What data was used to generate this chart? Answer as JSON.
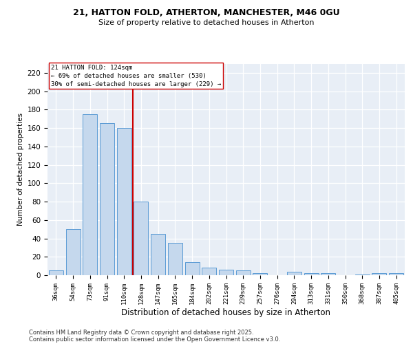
{
  "title1": "21, HATTON FOLD, ATHERTON, MANCHESTER, M46 0GU",
  "title2": "Size of property relative to detached houses in Atherton",
  "xlabel": "Distribution of detached houses by size in Atherton",
  "ylabel": "Number of detached properties",
  "categories": [
    "36sqm",
    "54sqm",
    "73sqm",
    "91sqm",
    "110sqm",
    "128sqm",
    "147sqm",
    "165sqm",
    "184sqm",
    "202sqm",
    "221sqm",
    "239sqm",
    "257sqm",
    "276sqm",
    "294sqm",
    "313sqm",
    "331sqm",
    "350sqm",
    "368sqm",
    "387sqm",
    "405sqm"
  ],
  "values": [
    5,
    50,
    175,
    165,
    160,
    80,
    45,
    35,
    14,
    8,
    6,
    5,
    2,
    0,
    4,
    2,
    2,
    0,
    1,
    2,
    2
  ],
  "bar_color": "#c5d8ed",
  "bar_edge_color": "#5b9bd5",
  "vline_index": 4,
  "vline_side": "right",
  "vline_color": "#cc0000",
  "annotation_line1": "21 HATTON FOLD: 124sqm",
  "annotation_line2": "← 69% of detached houses are smaller (530)",
  "annotation_line3": "30% of semi-detached houses are larger (229) →",
  "annotation_box_color": "white",
  "annotation_box_edge": "#cc0000",
  "ylim": [
    0,
    230
  ],
  "yticks": [
    0,
    20,
    40,
    60,
    80,
    100,
    120,
    140,
    160,
    180,
    200,
    220
  ],
  "bg_color": "#e8eef6",
  "footer_line1": "Contains HM Land Registry data © Crown copyright and database right 2025.",
  "footer_line2": "Contains public sector information licensed under the Open Government Licence v3.0."
}
